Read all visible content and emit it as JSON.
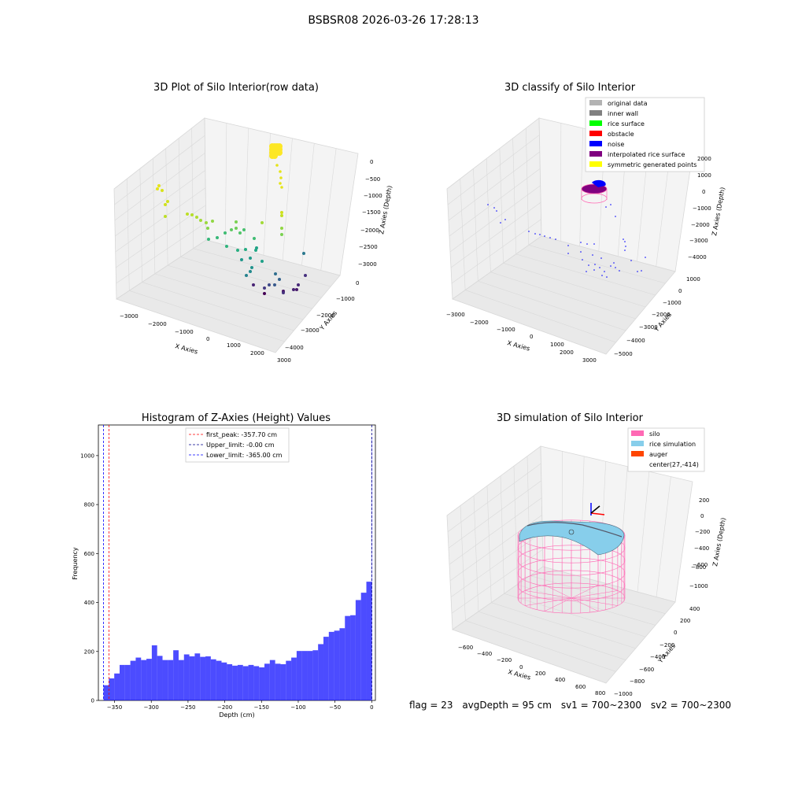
{
  "suptitle": "BSBSR08 2026-03-26 17:28:13",
  "panels": {
    "raw": {
      "title": "3D Plot of Silo Interior(row data)",
      "xlabel": "X Axies",
      "ylabel": "Y Axies",
      "zlabel": "Z Axies (Depth)",
      "xticks": [
        "−3000",
        "−2000",
        "−1000",
        "0",
        "1000",
        "2000",
        "3000"
      ],
      "yticks": [
        "0",
        "−1000",
        "−2000",
        "−3000",
        "−4000"
      ],
      "zticks": [
        "0",
        "−500",
        "−1000",
        "−1500",
        "−2000",
        "−2500",
        "−3000"
      ]
    },
    "classify": {
      "title": "3D classify of Silo Interior",
      "xlabel": "X Axies",
      "ylabel": "Y Axies",
      "zlabel": "Z Axies (Depth)",
      "xticks": [
        "−3000",
        "−2000",
        "−1000",
        "0",
        "1000",
        "2000",
        "3000"
      ],
      "yticks": [
        "1000",
        "0",
        "−1000",
        "−2000",
        "−3000",
        "−4000",
        "−5000"
      ],
      "zticks": [
        "2000",
        "1000",
        "0",
        "−1000",
        "−2000",
        "−3000",
        "−4000"
      ],
      "legend": [
        {
          "label": "original data",
          "color": "#b3b3b3"
        },
        {
          "label": "inner wall",
          "color": "#808080"
        },
        {
          "label": "rice surface",
          "color": "#00ff00"
        },
        {
          "label": "obstacle",
          "color": "#ff0000"
        },
        {
          "label": "noise",
          "color": "#0000ff"
        },
        {
          "label": "interpolated rice surface",
          "color": "#800080"
        },
        {
          "label": "symmetric generated points",
          "color": "#ffff00"
        }
      ]
    },
    "simulation": {
      "title": "3D simulation of Silo Interior",
      "xlabel": "X Axies",
      "ylabel": "Y Axies",
      "zlabel": "Z Axies (Depth)",
      "xticks": [
        "−600",
        "−400",
        "−200",
        "0",
        "200",
        "400",
        "600",
        "800"
      ],
      "yticks": [
        "400",
        "200",
        "0",
        "−200",
        "−400",
        "−600",
        "−800",
        "−1000"
      ],
      "zticks": [
        "200",
        "0",
        "−200",
        "−400",
        "−600",
        "−800",
        "−1000"
      ],
      "legend": [
        {
          "label": "silo",
          "color": "#ff69b4"
        },
        {
          "label": "rice simulation",
          "color": "#87ceeb"
        },
        {
          "label": "auger",
          "color": "#ff4500"
        },
        {
          "label": "center(27,-414)",
          "color": ""
        }
      ]
    }
  },
  "footer": {
    "flag": "flag = 23",
    "avg": "avgDepth = 95 cm",
    "sv1": "sv1 = 700~2300",
    "sv2": "sv2 = 700~2300"
  },
  "chart_data": {
    "type": "bar",
    "title": "Histogram of Z-Axies (Height) Values",
    "xlabel": "Depth (cm)",
    "ylabel": "Frequency",
    "xlim": [
      -372,
      5
    ],
    "ylim": [
      0,
      1125
    ],
    "xticks": [
      -350,
      -300,
      -250,
      -200,
      -150,
      -100,
      -50,
      0
    ],
    "yticks": [
      0,
      200,
      400,
      600,
      800,
      1000
    ],
    "bar_color": "#0000ff",
    "bin_width": 7.3,
    "bin_start": -365,
    "values": [
      62,
      90,
      110,
      145,
      145,
      162,
      175,
      165,
      170,
      225,
      182,
      165,
      165,
      205,
      165,
      188,
      180,
      192,
      178,
      180,
      168,
      162,
      155,
      148,
      142,
      145,
      140,
      145,
      140,
      135,
      150,
      165,
      150,
      148,
      162,
      175,
      202,
      202,
      202,
      205,
      230,
      260,
      280,
      285,
      295,
      345,
      348,
      410,
      440,
      485,
      1075
    ],
    "vlines": [
      {
        "label": "first_peak: -357.70 cm",
        "x": -357.7,
        "color": "#ff0000"
      },
      {
        "label": "Upper_limit: -0.00 cm",
        "x": 0,
        "color": "#00008b"
      },
      {
        "label": "Lower_limit: -365.00 cm",
        "x": -365,
        "color": "#0000ff"
      }
    ]
  }
}
